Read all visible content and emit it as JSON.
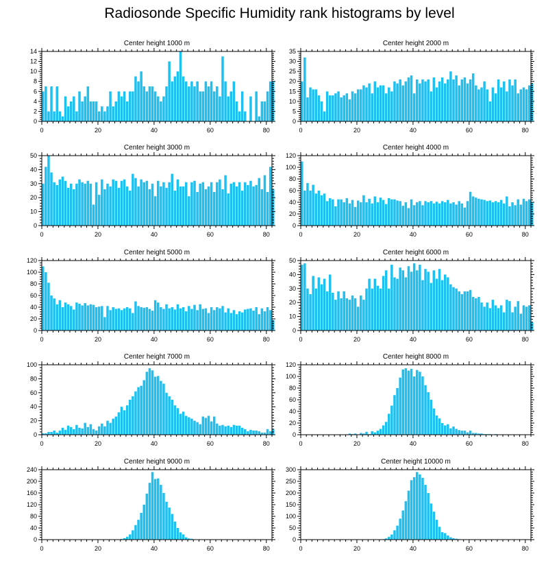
{
  "title": "Radiosonde Specific Humidity rank histograms by level",
  "colors": {
    "bar": "#1ec0f0",
    "bar_edge": "#0aa8de",
    "axis": "#000000"
  },
  "chart_data": [
    {
      "type": "bar",
      "title": "Center height 1000 m",
      "xlim": [
        0,
        82
      ],
      "xticks": [
        0,
        20,
        40,
        60,
        80
      ],
      "ylim": [
        0,
        14
      ],
      "yticks": [
        0,
        2,
        4,
        6,
        8,
        10,
        12,
        14
      ],
      "values": [
        6,
        7,
        2,
        7,
        2,
        7,
        2,
        1,
        5,
        3,
        4,
        5,
        2,
        6,
        4,
        5,
        7,
        4,
        4,
        4,
        2,
        3,
        2,
        3,
        6,
        3,
        4,
        6,
        5,
        6,
        4,
        6,
        6,
        9,
        8,
        10,
        7,
        6,
        7,
        7,
        6,
        5,
        4,
        5,
        7,
        12,
        8,
        9,
        10,
        14,
        9,
        8,
        7,
        8,
        7,
        8,
        6,
        6,
        8,
        7,
        8,
        6,
        7,
        5,
        13,
        8,
        5,
        6,
        8,
        4,
        2,
        6,
        2,
        0,
        5,
        0,
        6,
        1,
        4,
        4,
        6,
        8,
        8
      ]
    },
    {
      "type": "bar",
      "title": "Center height 2000 m",
      "xlim": [
        0,
        82
      ],
      "xticks": [
        0,
        20,
        40,
        60,
        80
      ],
      "ylim": [
        0,
        35
      ],
      "yticks": [
        0,
        5,
        10,
        15,
        20,
        25,
        30,
        35
      ],
      "values": [
        20,
        32,
        12,
        17,
        16,
        16,
        13,
        10,
        5,
        15,
        13,
        13,
        14,
        15,
        12,
        13,
        14,
        11,
        15,
        14,
        16,
        16,
        18,
        17,
        19,
        14,
        20,
        17,
        18,
        18,
        14,
        17,
        15,
        20,
        19,
        21,
        18,
        20,
        22,
        23,
        14,
        21,
        19,
        21,
        20,
        21,
        15,
        22,
        17,
        20,
        22,
        19,
        21,
        25,
        21,
        23,
        18,
        21,
        22,
        19,
        21,
        24,
        18,
        16,
        17,
        20,
        16,
        10,
        17,
        14,
        21,
        17,
        20,
        15,
        21,
        18,
        21,
        14,
        16,
        17,
        16,
        18,
        19
      ]
    },
    {
      "type": "bar",
      "title": "Center height 3000 m",
      "xlim": [
        0,
        82
      ],
      "xticks": [
        0,
        20,
        40,
        60,
        80
      ],
      "ylim": [
        0,
        50
      ],
      "yticks": [
        0,
        10,
        20,
        30,
        40,
        50
      ],
      "values": [
        30,
        42,
        50,
        38,
        31,
        29,
        33,
        35,
        32,
        27,
        30,
        26,
        30,
        33,
        31,
        30,
        32,
        30,
        15,
        31,
        22,
        33,
        26,
        30,
        28,
        33,
        32,
        27,
        32,
        33,
        28,
        25,
        37,
        34,
        28,
        33,
        31,
        32,
        26,
        30,
        21,
        32,
        28,
        31,
        27,
        31,
        37,
        25,
        33,
        28,
        28,
        31,
        21,
        31,
        32,
        24,
        30,
        31,
        26,
        28,
        31,
        24,
        31,
        33,
        26,
        36,
        23,
        30,
        31,
        28,
        31,
        25,
        31,
        29,
        32,
        28,
        29,
        34,
        26,
        36,
        24,
        42,
        26
      ]
    },
    {
      "type": "bar",
      "title": "Center height 4000 m",
      "xlim": [
        0,
        82
      ],
      "xticks": [
        0,
        20,
        40,
        60,
        80
      ],
      "ylim": [
        0,
        120
      ],
      "yticks": [
        0,
        20,
        40,
        60,
        80,
        100,
        120
      ],
      "values": [
        110,
        60,
        73,
        60,
        70,
        55,
        60,
        52,
        55,
        42,
        47,
        45,
        33,
        45,
        45,
        40,
        47,
        38,
        44,
        32,
        43,
        40,
        52,
        40,
        46,
        38,
        50,
        40,
        48,
        44,
        37,
        47,
        45,
        45,
        43,
        42,
        34,
        40,
        30,
        45,
        35,
        40,
        42,
        35,
        42,
        40,
        42,
        38,
        41,
        38,
        42,
        40,
        44,
        38,
        40,
        36,
        42,
        38,
        31,
        42,
        58,
        50,
        48,
        46,
        45,
        44,
        42,
        43,
        40,
        42,
        40,
        44,
        38,
        50,
        33,
        40,
        35,
        45,
        36,
        46,
        42,
        45,
        40
      ]
    },
    {
      "type": "bar",
      "title": "Center height 5000 m",
      "xlim": [
        0,
        82
      ],
      "xticks": [
        0,
        20,
        40,
        60,
        80
      ],
      "ylim": [
        0,
        120
      ],
      "yticks": [
        0,
        20,
        40,
        60,
        80,
        100,
        120
      ],
      "values": [
        110,
        100,
        82,
        60,
        55,
        45,
        52,
        40,
        48,
        45,
        42,
        36,
        48,
        46,
        43,
        47,
        43,
        45,
        44,
        40,
        41,
        42,
        23,
        42,
        35,
        40,
        37,
        38,
        35,
        38,
        40,
        38,
        30,
        50,
        42,
        40,
        39,
        40,
        37,
        34,
        52,
        48,
        40,
        37,
        45,
        38,
        40,
        36,
        45,
        38,
        40,
        33,
        42,
        37,
        44,
        35,
        45,
        37,
        38,
        30,
        40,
        35,
        40,
        38,
        42,
        31,
        38,
        30,
        35,
        28,
        33,
        31,
        36,
        37,
        38,
        34,
        40,
        28,
        38,
        33,
        40,
        35,
        18
      ]
    },
    {
      "type": "bar",
      "title": "Center height 6000 m",
      "xlim": [
        0,
        82
      ],
      "xticks": [
        0,
        20,
        40,
        60,
        80
      ],
      "ylim": [
        0,
        50
      ],
      "yticks": [
        0,
        10,
        20,
        30,
        40,
        50
      ],
      "values": [
        47,
        48,
        30,
        26,
        39,
        30,
        38,
        33,
        37,
        28,
        40,
        27,
        22,
        28,
        23,
        28,
        23,
        22,
        25,
        23,
        17,
        25,
        22,
        30,
        37,
        30,
        37,
        32,
        30,
        39,
        43,
        30,
        47,
        38,
        37,
        45,
        43,
        38,
        46,
        42,
        48,
        43,
        47,
        36,
        44,
        42,
        34,
        43,
        37,
        44,
        36,
        40,
        38,
        33,
        31,
        30,
        28,
        26,
        28,
        28,
        29,
        24,
        23,
        24,
        20,
        17,
        20,
        16,
        22,
        18,
        16,
        18,
        13,
        22,
        21,
        13,
        17,
        21,
        12,
        18,
        17,
        18,
        6
      ]
    },
    {
      "type": "bar",
      "title": "Center height 7000 m",
      "xlim": [
        0,
        82
      ],
      "xticks": [
        0,
        20,
        40,
        60,
        80
      ],
      "ylim": [
        0,
        100
      ],
      "yticks": [
        0,
        20,
        40,
        60,
        80,
        100
      ],
      "values": [
        2,
        2,
        4,
        4,
        6,
        3,
        6,
        10,
        7,
        13,
        11,
        8,
        14,
        10,
        9,
        17,
        11,
        15,
        8,
        6,
        12,
        16,
        12,
        20,
        17,
        23,
        26,
        32,
        40,
        35,
        42,
        50,
        55,
        62,
        68,
        70,
        78,
        90,
        95,
        92,
        83,
        84,
        77,
        73,
        60,
        55,
        50,
        42,
        38,
        30,
        33,
        27,
        25,
        23,
        20,
        18,
        15,
        26,
        24,
        27,
        19,
        26,
        16,
        13,
        14,
        12,
        13,
        11,
        14,
        13,
        13,
        10,
        8,
        5,
        7,
        6,
        6,
        5,
        3,
        3,
        8,
        5,
        8
      ]
    },
    {
      "type": "bar",
      "title": "Center height 8000 m",
      "xlim": [
        0,
        82
      ],
      "xticks": [
        0,
        20,
        40,
        60,
        80
      ],
      "ylim": [
        0,
        120
      ],
      "yticks": [
        0,
        20,
        40,
        60,
        80,
        100,
        120
      ],
      "values": [
        0,
        0,
        0,
        0,
        0,
        0,
        0,
        0,
        0,
        0,
        0,
        0,
        0,
        0,
        0,
        0,
        0,
        2,
        1,
        2,
        0,
        3,
        2,
        5,
        1,
        6,
        4,
        7,
        10,
        16,
        22,
        36,
        50,
        68,
        80,
        98,
        112,
        114,
        110,
        113,
        100,
        111,
        108,
        100,
        85,
        73,
        60,
        45,
        33,
        28,
        20,
        16,
        18,
        11,
        14,
        10,
        8,
        7,
        7,
        4,
        7,
        3,
        3,
        2,
        2,
        1,
        1,
        1,
        0,
        1,
        0,
        0,
        0,
        0,
        0,
        0,
        0,
        0,
        0,
        0,
        0,
        0,
        0
      ]
    },
    {
      "type": "bar",
      "title": "Center height 9000 m",
      "xlim": [
        0,
        82
      ],
      "xticks": [
        0,
        20,
        40,
        60,
        80
      ],
      "ylim": [
        0,
        240
      ],
      "yticks": [
        0,
        40,
        80,
        120,
        160,
        200,
        240
      ],
      "values": [
        0,
        0,
        0,
        0,
        0,
        0,
        0,
        0,
        0,
        0,
        0,
        0,
        0,
        0,
        0,
        0,
        0,
        0,
        0,
        0,
        0,
        0,
        0,
        0,
        0,
        0,
        0,
        0,
        2,
        5,
        10,
        18,
        32,
        50,
        68,
        92,
        120,
        158,
        195,
        232,
        208,
        210,
        188,
        160,
        130,
        110,
        88,
        62,
        40,
        25,
        18,
        8,
        4,
        3,
        1,
        1,
        0,
        0,
        0,
        0,
        0,
        0,
        0,
        0,
        0,
        0,
        0,
        0,
        0,
        0,
        0,
        0,
        0,
        0,
        0,
        0,
        0,
        0,
        0,
        0,
        0,
        0,
        0
      ]
    },
    {
      "type": "bar",
      "title": "Center height 10000 m",
      "xlim": [
        0,
        82
      ],
      "xticks": [
        0,
        20,
        40,
        60,
        80
      ],
      "ylim": [
        0,
        300
      ],
      "yticks": [
        0,
        50,
        100,
        150,
        200,
        250,
        300
      ],
      "values": [
        0,
        0,
        0,
        0,
        0,
        0,
        0,
        0,
        0,
        0,
        0,
        0,
        0,
        0,
        0,
        0,
        0,
        0,
        0,
        0,
        0,
        0,
        0,
        0,
        0,
        0,
        0,
        0,
        0,
        2,
        5,
        12,
        22,
        40,
        60,
        90,
        125,
        165,
        210,
        255,
        268,
        290,
        280,
        265,
        235,
        200,
        155,
        120,
        85,
        55,
        32,
        28,
        18,
        10,
        6,
        4,
        2,
        1,
        1,
        0,
        0,
        0,
        0,
        0,
        0,
        0,
        0,
        0,
        0,
        0,
        0,
        0,
        0,
        0,
        0,
        0,
        0,
        0,
        0,
        0,
        0,
        0,
        0
      ]
    }
  ]
}
